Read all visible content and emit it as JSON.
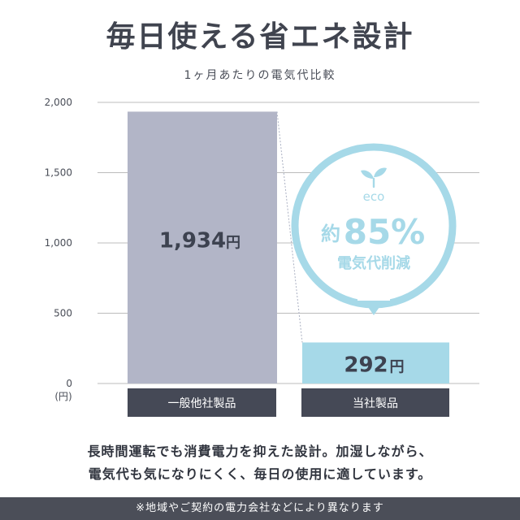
{
  "header": {
    "title": "毎日使える省エネ設計",
    "subtitle": "1ヶ月あたりの電気代比較"
  },
  "chart_data": {
    "type": "bar",
    "categories": [
      "一般他社製品",
      "当社製品"
    ],
    "values": [
      1934,
      292
    ],
    "value_labels": [
      "1,934",
      "292"
    ],
    "value_unit": "円",
    "ylim": [
      0,
      2000
    ],
    "yticks": [
      "0",
      "500",
      "1,000",
      "1,500",
      "2,000"
    ],
    "ytick_values": [
      0,
      500,
      1000,
      1500,
      2000
    ],
    "yunit": "(円)",
    "grid": true,
    "colors": {
      "bar_other": "#b2b5c7",
      "bar_ours": "#a6d9e8",
      "category_box": "#454956",
      "grid": "#bcbcbc",
      "badge": "#a6d9e8"
    }
  },
  "badge": {
    "eco": "eco",
    "prefix": "約",
    "percent": "85%",
    "sub": "電気代削減",
    "icon": "leaf-sprout-icon"
  },
  "caption": {
    "line1": "長時間運転でも消費電力を抑えた設計。加湿しながら、",
    "line2": "電気代も気になりにくく、毎日の使用に適しています。"
  },
  "footer": {
    "note": "※地域やご契約の電力会社などにより異なります"
  }
}
